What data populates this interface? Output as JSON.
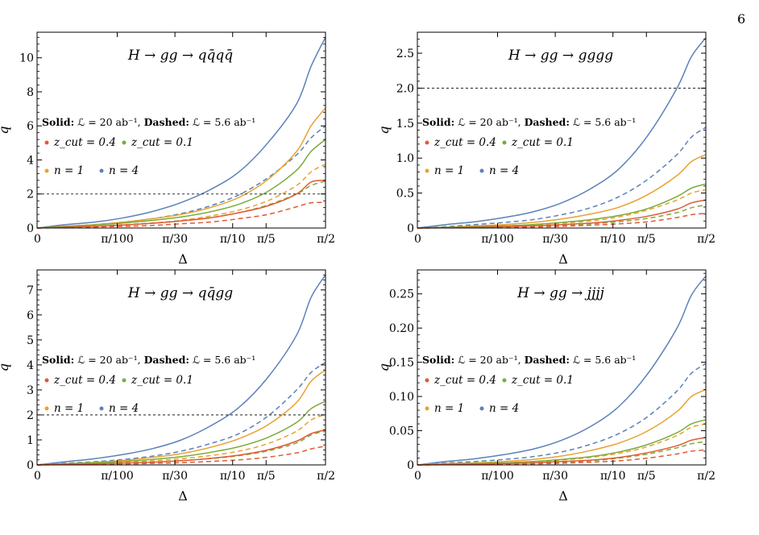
{
  "page": {
    "number": "6"
  },
  "chart_data": [
    {
      "type": "line",
      "title": "H → gg → qq̄qq̄",
      "xlabel": "Δ",
      "ylabel": "q",
      "xlim": [
        0,
        1.5708
      ],
      "ylim": [
        0,
        11.5
      ],
      "y_ticks": [
        0,
        2,
        4,
        6,
        8,
        10
      ],
      "y_tick_labels": [
        "0",
        "2",
        "4",
        "6",
        "8",
        "10"
      ],
      "x_ticks": [
        0,
        0.0314,
        0.1047,
        0.3142,
        0.6283,
        1.5708
      ],
      "x_tick_labels": [
        "0",
        "π/100",
        "π/30",
        "π/10",
        "π/5",
        "π/2"
      ],
      "annotation": {
        "solid_prefix": "Solid:",
        "solid_value": "ℒ = 20 ab⁻¹,",
        "dashed_prefix": "Dashed:",
        "dashed_value": "ℒ = 5.6 ab⁻¹"
      },
      "reference_line": {
        "y": 2,
        "style": "dashed"
      },
      "legend": [
        {
          "label": "z_cut = 0.4",
          "color": "#e15a35"
        },
        {
          "label": "z_cut = 0.1",
          "color": "#7bab3a"
        },
        {
          "label": "n = 1",
          "color": "#e8a231"
        },
        {
          "label": "n = 4",
          "color": "#5b82b8"
        }
      ],
      "x_positions": [
        0,
        0.1,
        0.2,
        0.3,
        0.4,
        0.5,
        0.6,
        0.7,
        0.8,
        0.9,
        0.95,
        1.0
      ],
      "series": [
        {
          "color": "#5b82b8",
          "dash": false,
          "values": [
            0,
            0.2,
            0.35,
            0.6,
            0.97,
            1.5,
            2.25,
            3.3,
            5.0,
            7.3,
            9.5,
            11.2
          ]
        },
        {
          "color": "#5b82b8",
          "dash": true,
          "values": [
            0,
            0.1,
            0.2,
            0.35,
            0.55,
            0.85,
            1.3,
            1.95,
            2.95,
            4.3,
            5.3,
            6.0
          ]
        },
        {
          "color": "#e8a231",
          "dash": false,
          "values": [
            0,
            0.1,
            0.2,
            0.35,
            0.55,
            0.8,
            1.2,
            1.8,
            2.85,
            4.5,
            6.0,
            7.05
          ]
        },
        {
          "color": "#e8a231",
          "dash": true,
          "values": [
            0,
            0.05,
            0.1,
            0.2,
            0.3,
            0.45,
            0.7,
            1.05,
            1.6,
            2.5,
            3.3,
            3.75
          ]
        },
        {
          "color": "#7bab3a",
          "dash": false,
          "values": [
            0,
            0.1,
            0.18,
            0.3,
            0.45,
            0.65,
            0.95,
            1.4,
            2.15,
            3.4,
            4.5,
            5.2
          ]
        },
        {
          "color": "#7bab3a",
          "dash": true,
          "values": [
            0,
            0.05,
            0.1,
            0.18,
            0.28,
            0.42,
            0.6,
            0.9,
            1.35,
            2.0,
            2.5,
            2.75
          ]
        },
        {
          "color": "#e15a35",
          "dash": false,
          "values": [
            0,
            0.05,
            0.1,
            0.18,
            0.28,
            0.42,
            0.6,
            0.9,
            1.3,
            2.0,
            2.7,
            2.8
          ]
        },
        {
          "color": "#e15a35",
          "dash": true,
          "values": [
            0,
            0.03,
            0.06,
            0.1,
            0.15,
            0.25,
            0.35,
            0.55,
            0.8,
            1.25,
            1.48,
            1.5
          ]
        }
      ]
    },
    {
      "type": "line",
      "title": "H → gg → gggg",
      "xlabel": "Δ",
      "ylabel": "q",
      "xlim": [
        0,
        1.5708
      ],
      "ylim": [
        0,
        2.8
      ],
      "y_ticks": [
        0,
        0.5,
        1.0,
        1.5,
        2.0,
        2.5
      ],
      "y_tick_labels": [
        "0",
        "0.5",
        "1.0",
        "1.5",
        "2.0",
        "2.5"
      ],
      "x_ticks": [
        0,
        0.0314,
        0.1047,
        0.3142,
        0.6283,
        1.5708
      ],
      "x_tick_labels": [
        "0",
        "π/100",
        "π/30",
        "π/10",
        "π/5",
        "π/2"
      ],
      "annotation": {
        "solid_prefix": "Solid:",
        "solid_value": "ℒ = 20 ab⁻¹,",
        "dashed_prefix": "Dashed:",
        "dashed_value": "ℒ = 5.6 ab⁻¹"
      },
      "reference_line": {
        "y": 2,
        "style": "dashed"
      },
      "legend": [
        {
          "label": "z_cut = 0.4",
          "color": "#e15a35"
        },
        {
          "label": "z_cut = 0.1",
          "color": "#7bab3a"
        },
        {
          "label": "n = 1",
          "color": "#e8a231"
        },
        {
          "label": "n = 4",
          "color": "#5b82b8"
        }
      ],
      "x_positions": [
        0,
        0.1,
        0.2,
        0.3,
        0.4,
        0.5,
        0.6,
        0.7,
        0.8,
        0.9,
        0.95,
        1.0
      ],
      "series": [
        {
          "color": "#5b82b8",
          "dash": false,
          "values": [
            0,
            0.05,
            0.09,
            0.15,
            0.23,
            0.36,
            0.56,
            0.85,
            1.33,
            2.0,
            2.45,
            2.72
          ]
        },
        {
          "color": "#5b82b8",
          "dash": true,
          "values": [
            0,
            0.02,
            0.05,
            0.08,
            0.12,
            0.19,
            0.29,
            0.45,
            0.7,
            1.05,
            1.3,
            1.44
          ]
        },
        {
          "color": "#e8a231",
          "dash": false,
          "values": [
            0,
            0.01,
            0.03,
            0.05,
            0.08,
            0.13,
            0.2,
            0.3,
            0.48,
            0.75,
            0.95,
            1.05
          ]
        },
        {
          "color": "#e8a231",
          "dash": true,
          "values": [
            0,
            0.01,
            0.02,
            0.03,
            0.04,
            0.07,
            0.1,
            0.16,
            0.26,
            0.4,
            0.5,
            0.55
          ]
        },
        {
          "color": "#7bab3a",
          "dash": false,
          "values": [
            0,
            0.01,
            0.02,
            0.03,
            0.05,
            0.08,
            0.12,
            0.18,
            0.28,
            0.45,
            0.57,
            0.63
          ]
        },
        {
          "color": "#7bab3a",
          "dash": true,
          "values": [
            0,
            0.005,
            0.01,
            0.02,
            0.03,
            0.04,
            0.06,
            0.09,
            0.14,
            0.22,
            0.29,
            0.33
          ]
        },
        {
          "color": "#e15a35",
          "dash": false,
          "values": [
            0,
            0.005,
            0.01,
            0.02,
            0.03,
            0.05,
            0.07,
            0.11,
            0.17,
            0.27,
            0.36,
            0.4
          ]
        },
        {
          "color": "#e15a35",
          "dash": true,
          "values": [
            0,
            0.003,
            0.006,
            0.01,
            0.015,
            0.025,
            0.04,
            0.06,
            0.09,
            0.15,
            0.19,
            0.21
          ]
        }
      ]
    },
    {
      "type": "line",
      "title": "H → gg → qq̄gg",
      "xlabel": "Δ",
      "ylabel": "q",
      "xlim": [
        0,
        1.5708
      ],
      "ylim": [
        0,
        7.8
      ],
      "y_ticks": [
        0,
        1,
        2,
        3,
        4,
        5,
        6,
        7
      ],
      "y_tick_labels": [
        "0",
        "1",
        "2",
        "3",
        "4",
        "5",
        "6",
        "7"
      ],
      "x_ticks": [
        0,
        0.0314,
        0.1047,
        0.3142,
        0.6283,
        1.5708
      ],
      "x_tick_labels": [
        "0",
        "π/100",
        "π/30",
        "π/10",
        "π/5",
        "π/2"
      ],
      "annotation": {
        "solid_prefix": "Solid:",
        "solid_value": "ℒ = 20 ab⁻¹,",
        "dashed_prefix": "Dashed:",
        "dashed_value": "ℒ = 5.6 ab⁻¹"
      },
      "reference_line": {
        "y": 2,
        "style": "dashed"
      },
      "legend": [
        {
          "label": "z_cut = 0.4",
          "color": "#e15a35"
        },
        {
          "label": "z_cut = 0.1",
          "color": "#7bab3a"
        },
        {
          "label": "n = 1",
          "color": "#e8a231"
        },
        {
          "label": "n = 4",
          "color": "#5b82b8"
        }
      ],
      "x_positions": [
        0,
        0.1,
        0.2,
        0.3,
        0.4,
        0.5,
        0.6,
        0.7,
        0.8,
        0.9,
        0.95,
        1.0
      ],
      "series": [
        {
          "color": "#5b82b8",
          "dash": false,
          "values": [
            0,
            0.13,
            0.25,
            0.42,
            0.65,
            1.0,
            1.55,
            2.3,
            3.5,
            5.2,
            6.7,
            7.6
          ]
        },
        {
          "color": "#5b82b8",
          "dash": true,
          "values": [
            0,
            0.07,
            0.13,
            0.22,
            0.35,
            0.55,
            0.85,
            1.25,
            1.95,
            3.0,
            3.7,
            4.1
          ]
        },
        {
          "color": "#e8a231",
          "dash": false,
          "values": [
            0,
            0.05,
            0.1,
            0.18,
            0.3,
            0.45,
            0.7,
            1.05,
            1.6,
            2.5,
            3.35,
            3.8
          ]
        },
        {
          "color": "#e8a231",
          "dash": true,
          "values": [
            0,
            0.03,
            0.06,
            0.1,
            0.16,
            0.25,
            0.37,
            0.55,
            0.85,
            1.35,
            1.8,
            2.02
          ]
        },
        {
          "color": "#7bab3a",
          "dash": false,
          "values": [
            0,
            0.04,
            0.08,
            0.14,
            0.22,
            0.33,
            0.5,
            0.73,
            1.1,
            1.7,
            2.25,
            2.55
          ]
        },
        {
          "color": "#7bab3a",
          "dash": true,
          "values": [
            0,
            0.02,
            0.04,
            0.07,
            0.11,
            0.17,
            0.25,
            0.37,
            0.56,
            0.88,
            1.2,
            1.35
          ]
        },
        {
          "color": "#e15a35",
          "dash": false,
          "values": [
            0,
            0.02,
            0.04,
            0.07,
            0.11,
            0.17,
            0.26,
            0.39,
            0.6,
            0.95,
            1.25,
            1.4
          ]
        },
        {
          "color": "#e15a35",
          "dash": true,
          "values": [
            0,
            0.01,
            0.02,
            0.04,
            0.06,
            0.09,
            0.14,
            0.2,
            0.31,
            0.48,
            0.64,
            0.75
          ]
        }
      ]
    },
    {
      "type": "line",
      "title": "H → gg → jjjj",
      "xlabel": "Δ",
      "ylabel": "q",
      "xlim": [
        0,
        1.5708
      ],
      "ylim": [
        0,
        0.285
      ],
      "y_ticks": [
        0,
        0.05,
        0.1,
        0.15,
        0.2,
        0.25
      ],
      "y_tick_labels": [
        "0",
        "0.05",
        "0.10",
        "0.15",
        "0.20",
        "0.25"
      ],
      "x_ticks": [
        0,
        0.0314,
        0.1047,
        0.3142,
        0.6283,
        1.5708
      ],
      "x_tick_labels": [
        "0",
        "π/100",
        "π/30",
        "π/10",
        "π/5",
        "π/2"
      ],
      "annotation": {
        "solid_prefix": "Solid:",
        "solid_value": "ℒ = 20 ab⁻¹,",
        "dashed_prefix": "Dashed:",
        "dashed_value": "ℒ = 5.6 ab⁻¹"
      },
      "reference_line": null,
      "legend": [
        {
          "label": "z_cut = 0.4",
          "color": "#e15a35"
        },
        {
          "label": "z_cut = 0.1",
          "color": "#7bab3a"
        },
        {
          "label": "n = 1",
          "color": "#e8a231"
        },
        {
          "label": "n = 4",
          "color": "#5b82b8"
        }
      ],
      "x_positions": [
        0,
        0.1,
        0.2,
        0.3,
        0.4,
        0.5,
        0.6,
        0.7,
        0.8,
        0.9,
        0.95,
        1.0
      ],
      "series": [
        {
          "color": "#5b82b8",
          "dash": false,
          "values": [
            0,
            0.005,
            0.009,
            0.015,
            0.023,
            0.036,
            0.056,
            0.086,
            0.134,
            0.2,
            0.248,
            0.276
          ]
        },
        {
          "color": "#5b82b8",
          "dash": true,
          "values": [
            0,
            0.003,
            0.005,
            0.008,
            0.012,
            0.019,
            0.03,
            0.046,
            0.071,
            0.108,
            0.134,
            0.148
          ]
        },
        {
          "color": "#e8a231",
          "dash": false,
          "values": [
            0,
            0.002,
            0.003,
            0.005,
            0.008,
            0.013,
            0.021,
            0.032,
            0.05,
            0.078,
            0.1,
            0.11
          ]
        },
        {
          "color": "#e8a231",
          "dash": true,
          "values": [
            0,
            0.001,
            0.002,
            0.003,
            0.004,
            0.007,
            0.011,
            0.017,
            0.027,
            0.043,
            0.055,
            0.06
          ]
        },
        {
          "color": "#7bab3a",
          "dash": false,
          "values": [
            0,
            0.001,
            0.002,
            0.003,
            0.005,
            0.008,
            0.012,
            0.019,
            0.03,
            0.047,
            0.06,
            0.066
          ]
        },
        {
          "color": "#7bab3a",
          "dash": true,
          "values": [
            0,
            0.0005,
            0.001,
            0.002,
            0.003,
            0.004,
            0.006,
            0.01,
            0.016,
            0.025,
            0.031,
            0.034
          ]
        },
        {
          "color": "#e15a35",
          "dash": false,
          "values": [
            0,
            0.0005,
            0.001,
            0.002,
            0.003,
            0.005,
            0.007,
            0.011,
            0.018,
            0.028,
            0.036,
            0.04
          ]
        },
        {
          "color": "#e15a35",
          "dash": true,
          "values": [
            0,
            0.0003,
            0.0006,
            0.001,
            0.0015,
            0.0025,
            0.004,
            0.006,
            0.01,
            0.016,
            0.02,
            0.022
          ]
        }
      ]
    }
  ]
}
